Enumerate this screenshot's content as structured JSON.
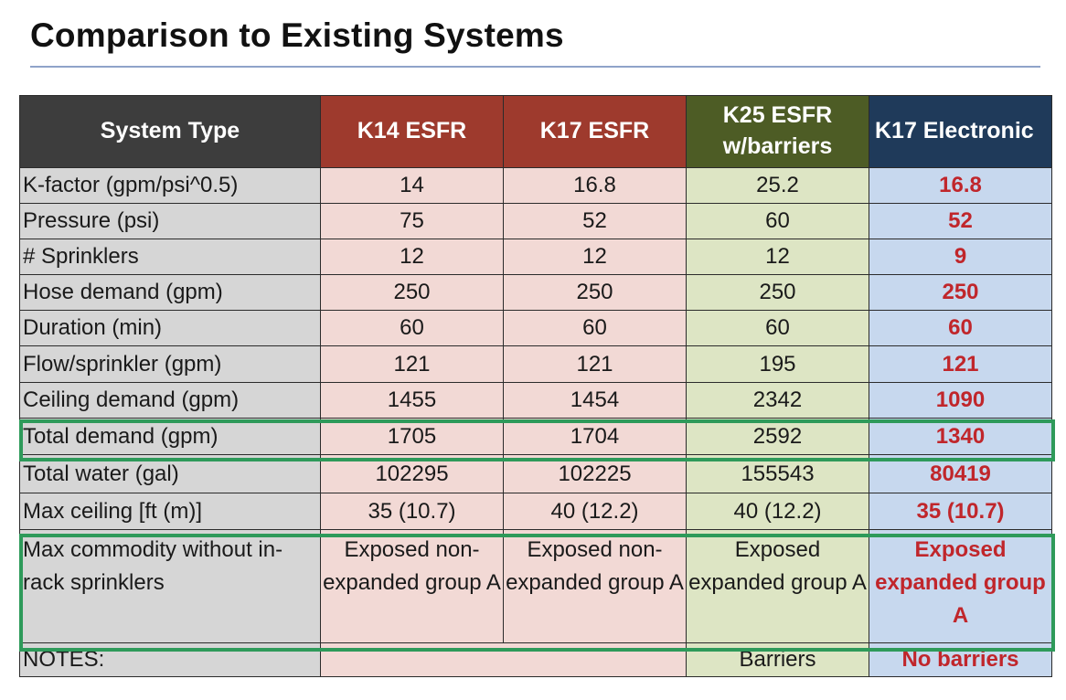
{
  "title": "Comparison to Existing Systems",
  "headers": {
    "system_type": "System Type",
    "k14": "K14 ESFR",
    "k17": "K17 ESFR",
    "k25": "K25 ESFR w/barriers",
    "k17e": "K17 Electronic"
  },
  "rows": {
    "kfactor": {
      "label": "K-factor (gpm/psi^0.5)",
      "k14": "14",
      "k17": "16.8",
      "k25": "25.2",
      "k17e": "16.8"
    },
    "pressure": {
      "label": "Pressure (psi)",
      "k14": "75",
      "k17": "52",
      "k25": "60",
      "k17e": "52"
    },
    "sprinklers": {
      "label": "# Sprinklers",
      "k14": "12",
      "k17": "12",
      "k25": "12",
      "k17e": "9"
    },
    "hose": {
      "label": "Hose demand (gpm)",
      "k14": "250",
      "k17": "250",
      "k25": "250",
      "k17e": "250"
    },
    "duration": {
      "label": "Duration (min)",
      "k14": "60",
      "k17": "60",
      "k25": "60",
      "k17e": "60"
    },
    "flow": {
      "label": "Flow/sprinkler (gpm)",
      "k14": "121",
      "k17": "121",
      "k25": "195",
      "k17e": "121"
    },
    "ceiling": {
      "label": "Ceiling demand (gpm)",
      "k14": "1455",
      "k17": "1454",
      "k25": "2342",
      "k17e": "1090"
    },
    "total_demand": {
      "label": "Total demand (gpm)",
      "k14": "1705",
      "k17": "1704",
      "k25": "2592",
      "k17e": "1340"
    },
    "total_water": {
      "label": "Total water (gal)",
      "k14": "102295",
      "k17": "102225",
      "k25": "155543",
      "k17e": "80419"
    },
    "max_ceiling": {
      "label": "Max ceiling [ft (m)]",
      "k14": "35 (10.7)",
      "k17": "40 (12.2)",
      "k25": "40 (12.2)",
      "k17e": "35 (10.7)"
    },
    "commodity": {
      "label": "Max commodity without in-rack sprinklers",
      "k14": "Exposed non-expanded group A",
      "k17": "Exposed non-expanded group A",
      "k25": "Exposed expanded group A",
      "k17e": "Exposed expanded group A"
    },
    "notes": {
      "label": "NOTES:",
      "k14": "",
      "k17": "",
      "k25": "Barriers",
      "k17e": "No barriers"
    }
  },
  "colors": {
    "k14_header": "#9e3a2d",
    "k17_header": "#9e3a2d",
    "k25_header": "#4d5c25",
    "k17e_header": "#1f3a5a",
    "highlight_border": "#2e9a5a",
    "emphasis_text": "#c0262b"
  }
}
